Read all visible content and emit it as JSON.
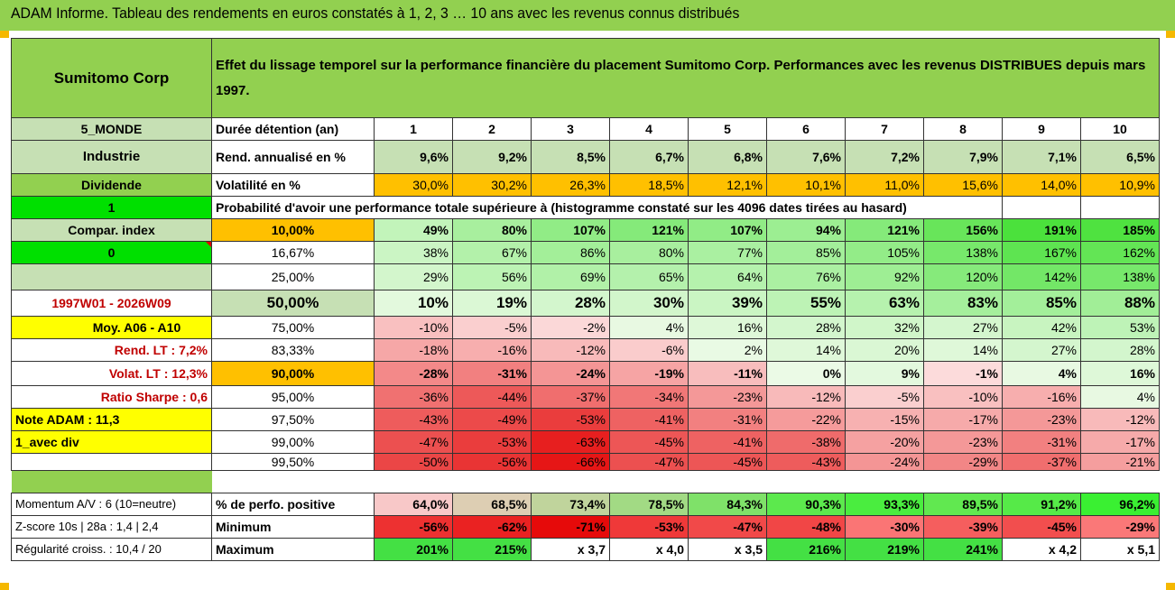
{
  "title": "ADAM Informe. Tableau des rendements en euros constatés à 1, 2, 3 … 10 ans avec les revenus connus distribués",
  "header": {
    "company": "Sumitomo Corp",
    "description": "Effet du lissage temporel sur la performance financière du placement Sumitomo Corp. Performances avec les revenus DISTRIBUES depuis mars 1997."
  },
  "side_labels": {
    "region": "5_MONDE",
    "sector": "Industrie",
    "dividend": "Dividende",
    "dividend_value": "1",
    "compar_index": "Compar. index",
    "compar_value": "0",
    "period": "1997W01 - 2026W09",
    "moy": "Moy. A06 - A10",
    "rend_lt": "Rend. LT :    7,2%",
    "volat_lt": "Volat. LT :    12,3%",
    "sharpe": "Ratio Sharpe :    0,6",
    "note": "Note ADAM : 11,3",
    "div_mode": "1_avec div"
  },
  "row_labels": {
    "duration": "Durée détention (an)",
    "rend": "Rend. annualisé en %",
    "volat": "Volatilité en %",
    "proba": "Probabilité d'avoir une performance totale supérieure à (histogramme constaté sur les 4096 dates tirées au hasard)"
  },
  "years": [
    "1",
    "2",
    "3",
    "4",
    "5",
    "6",
    "7",
    "8",
    "9",
    "10"
  ],
  "rend": [
    "9,6%",
    "9,2%",
    "8,5%",
    "6,7%",
    "6,8%",
    "7,6%",
    "7,2%",
    "7,9%",
    "7,1%",
    "6,5%"
  ],
  "volat": [
    "30,0%",
    "30,2%",
    "26,3%",
    "18,5%",
    "12,1%",
    "10,1%",
    "11,0%",
    "15,6%",
    "14,0%",
    "10,9%"
  ],
  "prob_rows": [
    {
      "pct": "10,00%",
      "values": [
        "49%",
        "80%",
        "107%",
        "121%",
        "107%",
        "94%",
        "121%",
        "156%",
        "191%",
        "185%"
      ]
    },
    {
      "pct": "16,67%",
      "values": [
        "38%",
        "67%",
        "86%",
        "80%",
        "77%",
        "85%",
        "105%",
        "138%",
        "167%",
        "162%"
      ]
    },
    {
      "pct": "25,00%",
      "values": [
        "29%",
        "56%",
        "69%",
        "65%",
        "64%",
        "76%",
        "92%",
        "120%",
        "142%",
        "138%"
      ]
    },
    {
      "pct": "50,00%",
      "values": [
        "10%",
        "19%",
        "28%",
        "30%",
        "39%",
        "55%",
        "63%",
        "83%",
        "85%",
        "88%"
      ]
    },
    {
      "pct": "75,00%",
      "values": [
        "-10%",
        "-5%",
        "-2%",
        "4%",
        "16%",
        "28%",
        "32%",
        "27%",
        "42%",
        "53%"
      ]
    },
    {
      "pct": "83,33%",
      "values": [
        "-18%",
        "-16%",
        "-12%",
        "-6%",
        "2%",
        "14%",
        "20%",
        "14%",
        "27%",
        "28%"
      ]
    },
    {
      "pct": "90,00%",
      "values": [
        "-28%",
        "-31%",
        "-24%",
        "-19%",
        "-11%",
        "0%",
        "9%",
        "-1%",
        "4%",
        "16%"
      ]
    },
    {
      "pct": "95,00%",
      "values": [
        "-36%",
        "-44%",
        "-37%",
        "-34%",
        "-23%",
        "-12%",
        "-5%",
        "-10%",
        "-16%",
        "4%"
      ]
    },
    {
      "pct": "97,50%",
      "values": [
        "-43%",
        "-49%",
        "-53%",
        "-41%",
        "-31%",
        "-22%",
        "-15%",
        "-17%",
        "-23%",
        "-12%"
      ]
    },
    {
      "pct": "99,00%",
      "values": [
        "-47%",
        "-53%",
        "-63%",
        "-45%",
        "-41%",
        "-38%",
        "-20%",
        "-23%",
        "-31%",
        "-17%"
      ]
    },
    {
      "pct": "99,50%",
      "values": [
        "-50%",
        "-56%",
        "-66%",
        "-47%",
        "-45%",
        "-43%",
        "-24%",
        "-29%",
        "-37%",
        "-21%"
      ]
    }
  ],
  "bottom": {
    "momentum": "Momentum A/V : 6 (10=neutre)",
    "zscore": "Z-score 10s | 28a : 1,4 | 2,4",
    "regularite": "Régularité croiss. : 10,4 / 20",
    "pos_label": "% de perfo. positive",
    "min_label": "Minimum",
    "max_label": "Maximum",
    "pos": [
      "64,0%",
      "68,5%",
      "73,4%",
      "78,5%",
      "84,3%",
      "90,3%",
      "93,3%",
      "89,5%",
      "91,2%",
      "96,2%"
    ],
    "min": [
      "-56%",
      "-62%",
      "-71%",
      "-53%",
      "-47%",
      "-48%",
      "-30%",
      "-39%",
      "-45%",
      "-29%"
    ],
    "max": [
      "201%",
      "215%",
      "x 3,7",
      "x 4,0",
      "x 3,5",
      "216%",
      "219%",
      "241%",
      "x 4,2",
      "x 5,1"
    ]
  },
  "colors": {
    "title_bg": "#92d050",
    "header_green": "#92d050",
    "light_green": "#c6e0b4",
    "bright_green": "#00e000",
    "yellow": "#ffff00",
    "orange": "#ffc000",
    "label_red": "#c00000"
  }
}
